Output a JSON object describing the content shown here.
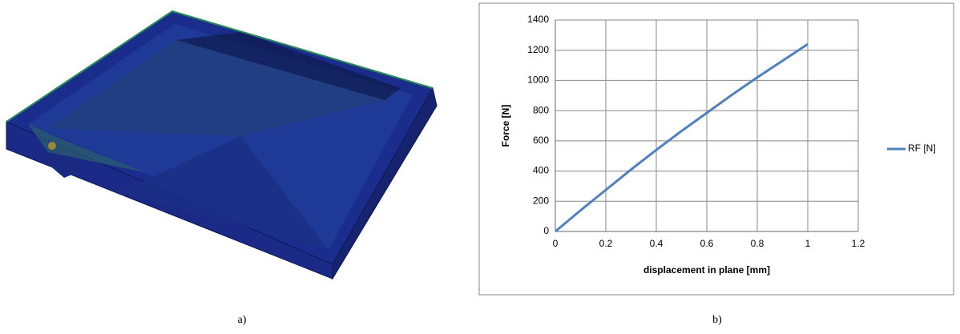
{
  "chart_data": {
    "type": "line",
    "xlabel": "displacement in plane [mm]",
    "ylabel": "Force [N]",
    "x": [
      0,
      0.1,
      0.2,
      0.3,
      0.4,
      0.5,
      0.6,
      0.7,
      0.8,
      0.9,
      1
    ],
    "series": [
      {
        "name": "RF [N]",
        "color": "#4f81bd",
        "values": [
          0,
          140,
          275,
          410,
          540,
          665,
          785,
          905,
          1020,
          1130,
          1240
        ]
      }
    ],
    "xlim": [
      0,
      1.2
    ],
    "ylim": [
      0,
      1400
    ],
    "xticks": [
      0,
      0.2,
      0.4,
      0.6,
      0.8,
      1,
      1.2
    ],
    "yticks": [
      0,
      200,
      400,
      600,
      800,
      1000,
      1200,
      1400
    ],
    "grid": true,
    "legend": "right"
  },
  "captions": [
    "a)",
    "b)"
  ]
}
